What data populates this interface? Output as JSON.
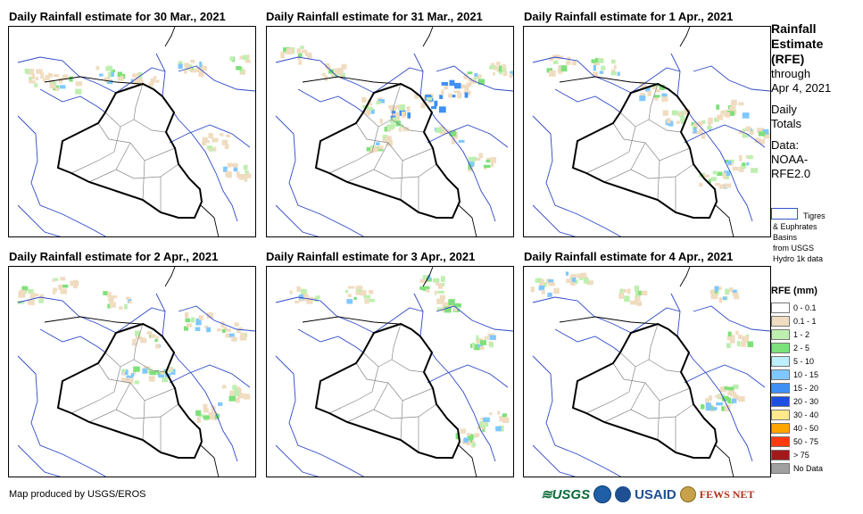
{
  "panels": [
    {
      "title": "Daily Rainfall estimate for 30 Mar., 2021"
    },
    {
      "title": "Daily Rainfall estimate for 31 Mar., 2021"
    },
    {
      "title": "Daily Rainfall estimate for 1 Apr., 2021"
    },
    {
      "title": "Daily Rainfall estimate for 2 Apr., 2021"
    },
    {
      "title": "Daily Rainfall estimate for 3 Apr., 2021"
    },
    {
      "title": "Daily Rainfall estimate for 4 Apr., 2021"
    }
  ],
  "sidebar": {
    "title_lines": [
      "Rainfall",
      "Estimate",
      "(RFE)"
    ],
    "through": "through",
    "date": "Apr 4, 2021",
    "daily": "Daily",
    "totals": "Totals",
    "data_label": "Data:",
    "source_1": "NOAA-",
    "source_2": "RFE2.0"
  },
  "basins": {
    "line1": "Tigres",
    "line2": "& Euphrates",
    "line3": "Basins",
    "line4": "from USGS",
    "line5": "Hydro 1k data"
  },
  "legend": {
    "title": "RFE (mm)",
    "items": [
      {
        "label": "0 - 0.1",
        "color": "#ffffff"
      },
      {
        "label": "0.1 - 1",
        "color": "#f0dcc0"
      },
      {
        "label": "1 - 2",
        "color": "#bfefb0"
      },
      {
        "label": "2 - 5",
        "color": "#7ee07a"
      },
      {
        "label": "5 - 10",
        "color": "#bdefff"
      },
      {
        "label": "10 - 15",
        "color": "#7fc8ff"
      },
      {
        "label": "15 - 20",
        "color": "#3f8ff5"
      },
      {
        "label": "20 - 30",
        "color": "#1c4fe0"
      },
      {
        "label": "30 - 40",
        "color": "#ffe98a"
      },
      {
        "label": "40 - 50",
        "color": "#ffa500"
      },
      {
        "label": "50 - 75",
        "color": "#ff3a10"
      },
      {
        "label": "> 75",
        "color": "#a01a1a"
      },
      {
        "label": "No Data",
        "color": "#a0a0a0"
      }
    ]
  },
  "footer": "Map produced by USGS/EROS",
  "logos": {
    "usgs": "≋USGS",
    "usaid": "USAID",
    "fews": "FEWS NET"
  }
}
